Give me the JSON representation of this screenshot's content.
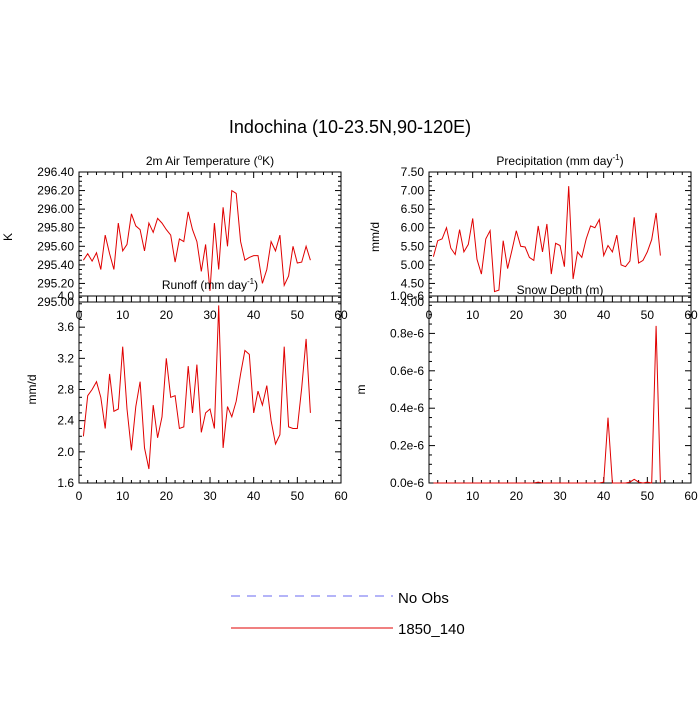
{
  "figure_title": "Indochina (10-23.5N,90-120E)",
  "legend": [
    {
      "label": "No Obs",
      "color": "#6a6af0",
      "dash": true
    },
    {
      "label": "1850_140",
      "color": "#e00000",
      "dash": false
    }
  ],
  "chart_data": [
    {
      "type": "line",
      "title": "2m Air Temperature (°K)",
      "title_parts": [
        "2m Air Temperature (",
        "o",
        "K)"
      ],
      "title_sup_index": 1,
      "ylabel": "K",
      "xlim": [
        0,
        60
      ],
      "ylim": [
        295.0,
        296.4
      ],
      "xticks": [
        "0",
        "10",
        "20",
        "30",
        "40",
        "50",
        "60"
      ],
      "yticks": [
        "295.00",
        "295.20",
        "295.40",
        "295.60",
        "295.80",
        "296.00",
        "296.20",
        "296.40"
      ],
      "series": [
        {
          "name": "1850_140",
          "color": "#e00000",
          "x": [
            1,
            2,
            3,
            4,
            5,
            6,
            7,
            8,
            9,
            10,
            11,
            12,
            13,
            14,
            15,
            16,
            17,
            18,
            19,
            20,
            21,
            22,
            23,
            24,
            25,
            26,
            27,
            28,
            29,
            30,
            31,
            32,
            33,
            34,
            35,
            36,
            37,
            38,
            39,
            40,
            41,
            42,
            43,
            44,
            45,
            46,
            47,
            48,
            49,
            50,
            51,
            52,
            53
          ],
          "values": [
            295.45,
            295.52,
            295.44,
            295.53,
            295.35,
            295.72,
            295.52,
            295.35,
            295.85,
            295.55,
            295.62,
            295.95,
            295.82,
            295.78,
            295.55,
            295.85,
            295.75,
            295.9,
            295.85,
            295.78,
            295.72,
            295.43,
            295.68,
            295.65,
            295.97,
            295.78,
            295.65,
            295.33,
            295.62,
            295.12,
            295.85,
            295.35,
            296.02,
            295.6,
            296.2,
            296.17,
            295.65,
            295.45,
            295.48,
            295.5,
            295.5,
            295.2,
            295.35,
            295.65,
            295.55,
            295.72,
            295.18,
            295.28,
            295.6,
            295.42,
            295.43,
            295.6,
            295.45
          ]
        }
      ]
    },
    {
      "type": "line",
      "title": "Precipitation (mm day-1)",
      "title_parts": [
        "Precipitation (mm day",
        "-1",
        ")"
      ],
      "title_sup_index": 1,
      "ylabel": "mm/d",
      "xlim": [
        0,
        60
      ],
      "ylim": [
        4.0,
        7.5
      ],
      "xticks": [
        "0",
        "10",
        "20",
        "30",
        "40",
        "50",
        "60"
      ],
      "yticks": [
        "4.00",
        "4.50",
        "5.00",
        "5.50",
        "6.00",
        "6.50",
        "7.00",
        "7.50"
      ],
      "series": [
        {
          "name": "1850_140",
          "color": "#e00000",
          "x": [
            1,
            2,
            3,
            4,
            5,
            6,
            7,
            8,
            9,
            10,
            11,
            12,
            13,
            14,
            15,
            16,
            17,
            18,
            19,
            20,
            21,
            22,
            23,
            24,
            25,
            26,
            27,
            28,
            29,
            30,
            31,
            32,
            33,
            34,
            35,
            36,
            37,
            38,
            39,
            40,
            41,
            42,
            43,
            44,
            45,
            46,
            47,
            48,
            49,
            50,
            51,
            52,
            53
          ],
          "values": [
            5.22,
            5.65,
            5.7,
            6.0,
            5.45,
            5.28,
            5.95,
            5.35,
            5.55,
            6.25,
            5.15,
            4.75,
            5.7,
            5.92,
            4.28,
            4.32,
            5.65,
            4.9,
            5.4,
            5.92,
            5.5,
            5.48,
            5.2,
            5.12,
            6.05,
            5.35,
            6.1,
            4.75,
            5.58,
            5.52,
            4.95,
            7.12,
            4.62,
            5.35,
            5.2,
            5.7,
            6.05,
            6.0,
            6.22,
            5.25,
            5.52,
            5.35,
            5.8,
            5.0,
            4.95,
            5.1,
            6.28,
            5.05,
            5.12,
            5.35,
            5.68,
            6.4,
            5.25
          ]
        }
      ]
    },
    {
      "type": "line",
      "title": "Runoff (mm day-1)",
      "title_parts": [
        "Runoff (mm day",
        "-1",
        ")"
      ],
      "title_sup_index": 1,
      "ylabel": "mm/d",
      "xlim": [
        0,
        60
      ],
      "ylim": [
        1.6,
        4.0
      ],
      "xticks": [
        "0",
        "10",
        "20",
        "30",
        "40",
        "50",
        "60"
      ],
      "yticks": [
        "1.6",
        "2.0",
        "2.4",
        "2.8",
        "3.2",
        "3.6",
        "4.0"
      ],
      "series": [
        {
          "name": "1850_140",
          "color": "#e00000",
          "x": [
            1,
            2,
            3,
            4,
            5,
            6,
            7,
            8,
            9,
            10,
            11,
            12,
            13,
            14,
            15,
            16,
            17,
            18,
            19,
            20,
            21,
            22,
            23,
            24,
            25,
            26,
            27,
            28,
            29,
            30,
            31,
            32,
            33,
            34,
            35,
            36,
            37,
            38,
            39,
            40,
            41,
            42,
            43,
            44,
            45,
            46,
            47,
            48,
            49,
            50,
            51,
            52,
            53
          ],
          "values": [
            2.2,
            2.72,
            2.8,
            2.9,
            2.7,
            2.3,
            3.0,
            2.52,
            2.55,
            3.35,
            2.55,
            2.02,
            2.58,
            2.9,
            2.05,
            1.78,
            2.6,
            2.18,
            2.45,
            3.2,
            2.7,
            2.72,
            2.3,
            2.32,
            3.1,
            2.5,
            3.12,
            2.25,
            2.5,
            2.55,
            2.3,
            3.88,
            2.05,
            2.58,
            2.45,
            2.65,
            3.0,
            3.3,
            3.25,
            2.5,
            2.78,
            2.6,
            2.85,
            2.4,
            2.1,
            2.22,
            3.35,
            2.32,
            2.3,
            2.3,
            2.82,
            3.45,
            2.5
          ]
        }
      ]
    },
    {
      "type": "line",
      "title": "Snow Depth (m)",
      "title_parts": [
        "Snow Depth (m)"
      ],
      "title_sup_index": -1,
      "ylabel": "m",
      "xlim": [
        0,
        60
      ],
      "ylim": [
        0,
        1e-06
      ],
      "xticks": [
        "0",
        "10",
        "20",
        "30",
        "40",
        "50",
        "60"
      ],
      "yticks": [
        "0.0e-6",
        "0.2e-6",
        "0.4e-6",
        "0.6e-6",
        "0.8e-6",
        "1.0e-6"
      ],
      "series": [
        {
          "name": "1850_140",
          "color": "#e00000",
          "x": [
            1,
            2,
            3,
            4,
            5,
            6,
            7,
            8,
            9,
            10,
            11,
            12,
            13,
            14,
            15,
            16,
            17,
            18,
            19,
            20,
            21,
            22,
            23,
            24,
            25,
            26,
            27,
            28,
            29,
            30,
            31,
            32,
            33,
            34,
            35,
            36,
            37,
            38,
            39,
            40,
            41,
            42,
            43,
            44,
            45,
            46,
            47,
            48,
            49,
            50,
            51,
            52,
            53
          ],
          "values": [
            0,
            0,
            0,
            0,
            0,
            0,
            0,
            0,
            0,
            0,
            0,
            0,
            0,
            0,
            0,
            0,
            0,
            0,
            0,
            0,
            0,
            0,
            0,
            0,
            5e-09,
            0,
            0,
            0,
            0,
            0,
            0,
            0,
            0,
            0,
            0,
            0,
            0,
            0,
            0,
            5e-09,
            3.5e-07,
            0,
            0,
            0,
            0,
            5e-09,
            2e-08,
            5e-09,
            0,
            5e-09,
            0,
            8.4e-07,
            0
          ]
        }
      ]
    }
  ]
}
